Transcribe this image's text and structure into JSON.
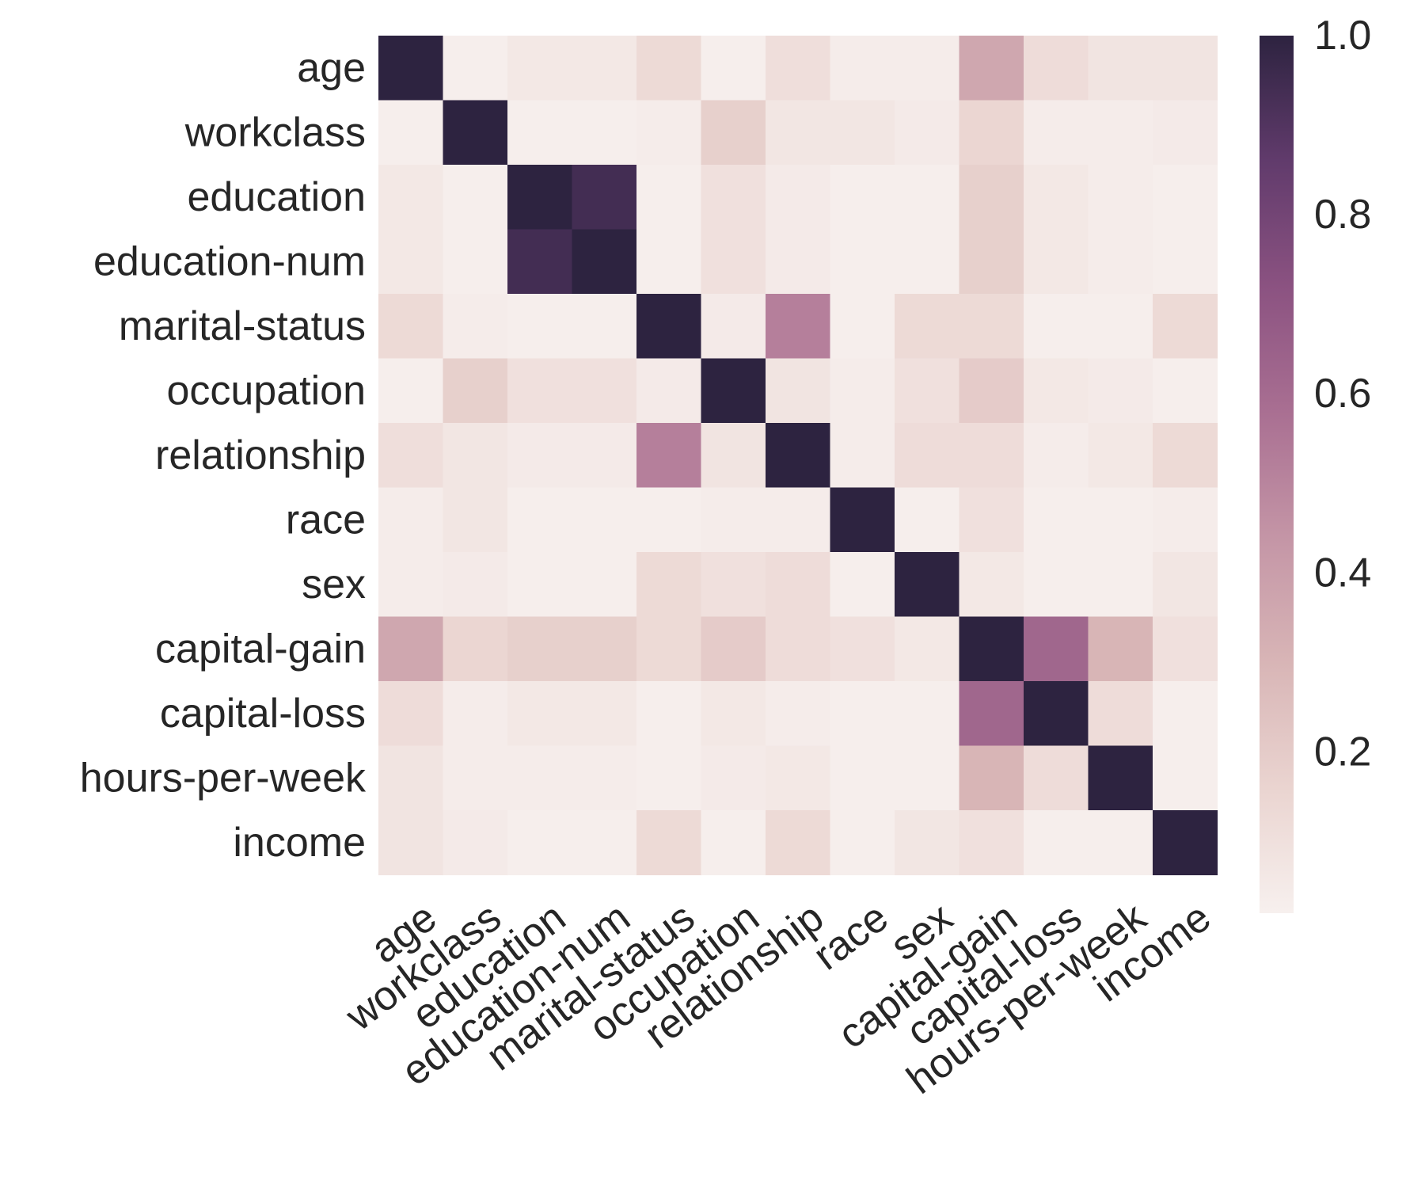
{
  "chart_data": {
    "type": "heatmap",
    "x_labels": [
      "age",
      "workclass",
      "education",
      "education-num",
      "marital-status",
      "occupation",
      "relationship",
      "race",
      "sex",
      "capital-gain",
      "capital-loss",
      "hours-per-week",
      "income"
    ],
    "y_labels": [
      "age",
      "workclass",
      "education",
      "education-num",
      "marital-status",
      "occupation",
      "relationship",
      "race",
      "sex",
      "capital-gain",
      "capital-loss",
      "hours-per-week",
      "income"
    ],
    "matrix": [
      [
        1.0,
        0.03,
        0.06,
        0.06,
        0.13,
        0.03,
        0.11,
        0.04,
        0.04,
        0.36,
        0.12,
        0.08,
        0.08
      ],
      [
        0.03,
        1.0,
        0.03,
        0.03,
        0.04,
        0.18,
        0.07,
        0.07,
        0.05,
        0.15,
        0.04,
        0.04,
        0.05
      ],
      [
        0.06,
        0.03,
        1.0,
        0.94,
        0.03,
        0.1,
        0.05,
        0.03,
        0.03,
        0.18,
        0.06,
        0.04,
        0.03
      ],
      [
        0.06,
        0.03,
        0.94,
        1.0,
        0.03,
        0.1,
        0.05,
        0.03,
        0.03,
        0.18,
        0.06,
        0.04,
        0.03
      ],
      [
        0.13,
        0.04,
        0.03,
        0.03,
        1.0,
        0.05,
        0.52,
        0.03,
        0.13,
        0.13,
        0.03,
        0.03,
        0.13
      ],
      [
        0.03,
        0.18,
        0.1,
        0.1,
        0.05,
        1.0,
        0.08,
        0.04,
        0.1,
        0.2,
        0.06,
        0.05,
        0.03
      ],
      [
        0.11,
        0.07,
        0.05,
        0.05,
        0.52,
        0.08,
        1.0,
        0.04,
        0.12,
        0.12,
        0.04,
        0.06,
        0.13
      ],
      [
        0.04,
        0.07,
        0.03,
        0.03,
        0.03,
        0.04,
        0.04,
        1.0,
        0.03,
        0.1,
        0.03,
        0.03,
        0.04
      ],
      [
        0.04,
        0.05,
        0.03,
        0.03,
        0.13,
        0.1,
        0.12,
        0.03,
        1.0,
        0.06,
        0.03,
        0.03,
        0.07
      ],
      [
        0.36,
        0.15,
        0.18,
        0.18,
        0.13,
        0.2,
        0.12,
        0.1,
        0.06,
        1.0,
        0.62,
        0.3,
        0.1
      ],
      [
        0.12,
        0.04,
        0.06,
        0.06,
        0.03,
        0.06,
        0.04,
        0.03,
        0.03,
        0.62,
        1.0,
        0.12,
        0.03
      ],
      [
        0.08,
        0.04,
        0.04,
        0.04,
        0.03,
        0.05,
        0.06,
        0.03,
        0.03,
        0.3,
        0.12,
        1.0,
        0.03
      ],
      [
        0.08,
        0.05,
        0.03,
        0.03,
        0.13,
        0.03,
        0.13,
        0.03,
        0.07,
        0.1,
        0.03,
        0.03,
        1.0
      ]
    ],
    "vmin": 0.02,
    "vmax": 1.0,
    "colorbar": {
      "ticks": [
        0.2,
        0.4,
        0.6,
        0.8,
        1.0
      ],
      "tick_labels": [
        "0.2",
        "0.4",
        "0.6",
        "0.8",
        "1.0"
      ]
    },
    "colormap_stops": [
      "#f7f0ee",
      "#ead4d0",
      "#d8b5b6",
      "#c495a6",
      "#a96f92",
      "#8b5281",
      "#613b6c",
      "#2d2340"
    ],
    "x_tick_rotation_deg": -37,
    "grid": false,
    "title": "",
    "xlabel": "",
    "ylabel": ""
  }
}
